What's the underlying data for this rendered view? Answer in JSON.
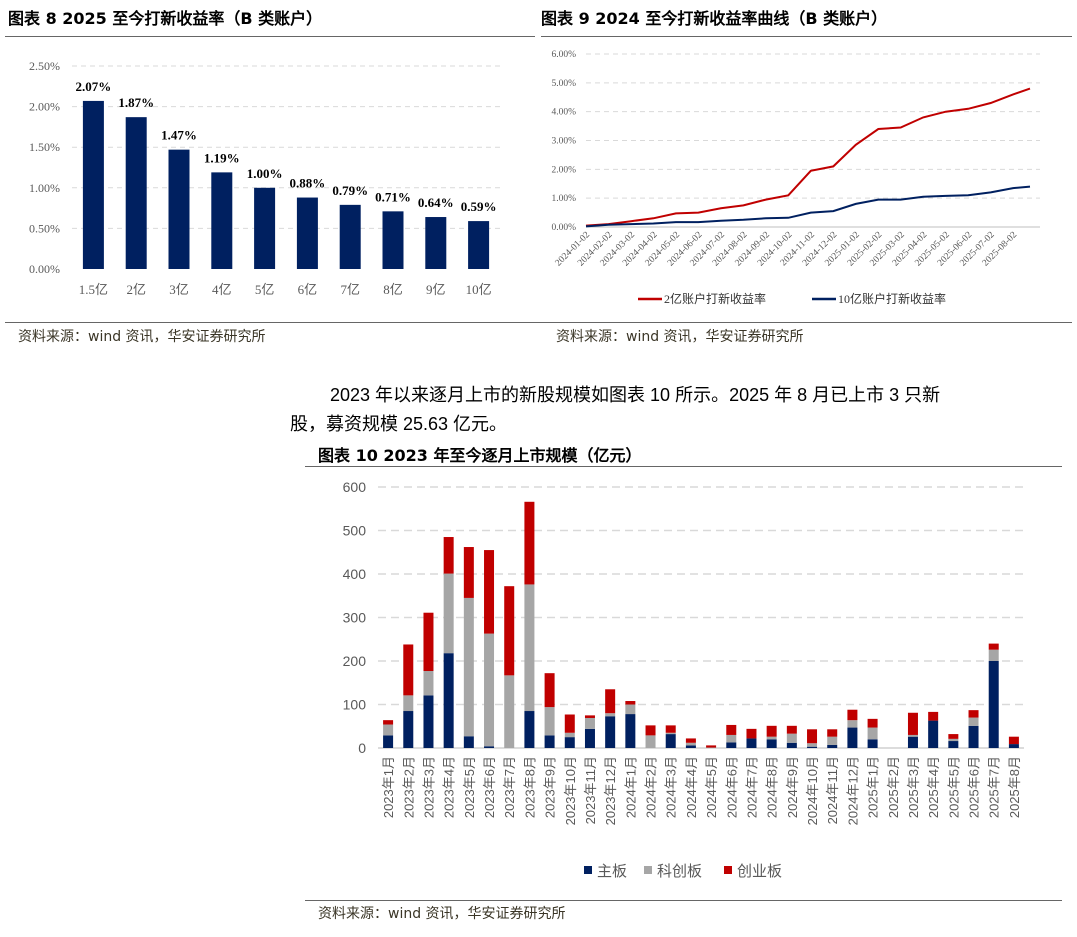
{
  "figure8": {
    "title": "图表 8 2025 至今打新收益率（B 类账户）",
    "source": "资料来源：wind 资讯，华安证券研究所"
  },
  "figure9": {
    "title": "图表 9 2024 至今打新收益率曲线（B 类账户）",
    "source": "资料来源：wind 资讯，华安证券研究所"
  },
  "paragraph": {
    "line1": "2023 年以来逐月上市的新股规模如图表 10 所示。2025 年 8 月已上市 3 只新",
    "line2": "股，募资规模 25.63 亿元。"
  },
  "figure10": {
    "title": "图表 10 2023 年至今逐月上市规模（亿元）",
    "source": "资料来源：wind 资讯，华安证券研究所"
  },
  "colors": {
    "navy": "#002060",
    "gray": "#a6a6a6",
    "red": "#c00000",
    "grid": "#d9d9d9"
  },
  "chart_data": [
    {
      "type": "bar",
      "title": "2025 至今打新收益率（B 类账户）",
      "categories": [
        "1.5亿",
        "2亿",
        "3亿",
        "4亿",
        "5亿",
        "6亿",
        "7亿",
        "8亿",
        "9亿",
        "10亿"
      ],
      "values": [
        2.07,
        1.87,
        1.47,
        1.19,
        1.0,
        0.88,
        0.79,
        0.71,
        0.64,
        0.59
      ],
      "data_labels": [
        "2.07%",
        "1.87%",
        "1.47%",
        "1.19%",
        "1.00%",
        "0.88%",
        "0.79%",
        "0.71%",
        "0.64%",
        "0.59%"
      ],
      "yticks": [
        "0.00%",
        "0.50%",
        "1.00%",
        "1.50%",
        "2.00%",
        "2.50%"
      ],
      "ylim": [
        0,
        2.5
      ],
      "grid": true
    },
    {
      "type": "line",
      "title": "2024 至今打新收益率曲线（B 类账户）",
      "x": [
        "2024-01-02",
        "2024-02-02",
        "2024-03-02",
        "2024-04-02",
        "2024-05-02",
        "2024-06-02",
        "2024-07-02",
        "2024-08-02",
        "2024-09-02",
        "2024-10-02",
        "2024-11-02",
        "2024-12-02",
        "2025-01-02",
        "2025-02-02",
        "2025-03-02",
        "2025-04-02",
        "2025-05-02",
        "2025-06-02",
        "2025-07-02",
        "2025-08-02",
        "2025-08-25"
      ],
      "xticks": [
        "2024-01-02",
        "2024-02-02",
        "2024-03-02",
        "2024-04-02",
        "2024-05-02",
        "2024-06-02",
        "2024-07-02",
        "2024-08-02",
        "2024-09-02",
        "2024-10-02",
        "2024-11-02",
        "2024-12-02",
        "2025-01-02",
        "2025-02-02",
        "2025-03-02",
        "2025-04-02",
        "2025-05-02",
        "2025-06-02",
        "2025-07-02",
        "2025-08-02"
      ],
      "series": [
        {
          "name": "2亿账户打新收益率",
          "color": "#c00000",
          "values": [
            0.05,
            0.1,
            0.2,
            0.3,
            0.47,
            0.5,
            0.65,
            0.75,
            0.95,
            1.1,
            1.95,
            2.1,
            2.85,
            3.4,
            3.45,
            3.8,
            4.0,
            4.1,
            4.3,
            4.6,
            4.8
          ]
        },
        {
          "name": "10亿账户打新收益率",
          "color": "#002060",
          "values": [
            0.02,
            0.08,
            0.1,
            0.12,
            0.17,
            0.17,
            0.22,
            0.25,
            0.3,
            0.32,
            0.5,
            0.55,
            0.8,
            0.95,
            0.95,
            1.05,
            1.08,
            1.1,
            1.2,
            1.35,
            1.4
          ]
        }
      ],
      "yticks": [
        "0.00%",
        "1.00%",
        "2.00%",
        "3.00%",
        "4.00%",
        "5.00%",
        "6.00%"
      ],
      "ylim": [
        0,
        6
      ],
      "legend": "bottom",
      "grid": true
    },
    {
      "type": "bar",
      "stacked": true,
      "title": "2023 年至今逐月上市规模（亿元）",
      "categories": [
        "2023年1月",
        "2023年2月",
        "2023年3月",
        "2023年4月",
        "2023年5月",
        "2023年6月",
        "2023年7月",
        "2023年8月",
        "2023年9月",
        "2023年10月",
        "2023年11月",
        "2023年12月",
        "2024年1月",
        "2024年2月",
        "2024年3月",
        "2024年4月",
        "2024年5月",
        "2024年6月",
        "2024年7月",
        "2024年8月",
        "2024年9月",
        "2024年10月",
        "2024年11月",
        "2024年12月",
        "2025年1月",
        "2025年2月",
        "2025年3月",
        "2025年4月",
        "2025年5月",
        "2025年6月",
        "2025年7月",
        "2025年8月"
      ],
      "series": [
        {
          "name": "主板",
          "color": "#002060",
          "values": [
            29,
            85,
            121,
            218,
            27,
            4,
            0,
            85,
            29,
            25,
            44,
            73,
            78,
            0,
            32,
            6,
            0,
            13,
            22,
            20,
            12,
            3,
            7,
            47,
            20,
            0,
            26,
            63,
            16,
            51,
            200,
            9
          ]
        },
        {
          "name": "科创板",
          "color": "#a6a6a6",
          "values": [
            25,
            36,
            56,
            183,
            318,
            259,
            167,
            291,
            65,
            10,
            25,
            7,
            22,
            29,
            3,
            6,
            1,
            17,
            0,
            6,
            21,
            8,
            19,
            17,
            27,
            0,
            4,
            0,
            5,
            19,
            26,
            0
          ]
        },
        {
          "name": "创业板",
          "color": "#c00000",
          "values": [
            10,
            117,
            134,
            84,
            117,
            192,
            205,
            190,
            78,
            42,
            6,
            55,
            8,
            23,
            17,
            10,
            5,
            23,
            22,
            25,
            18,
            32,
            17,
            24,
            20,
            0,
            51,
            20,
            11,
            17,
            14,
            17
          ]
        }
      ],
      "yticks": [
        "0",
        "100",
        "200",
        "300",
        "400",
        "500",
        "600"
      ],
      "ylim": [
        0,
        600
      ],
      "legend": "bottom",
      "grid": true
    }
  ]
}
